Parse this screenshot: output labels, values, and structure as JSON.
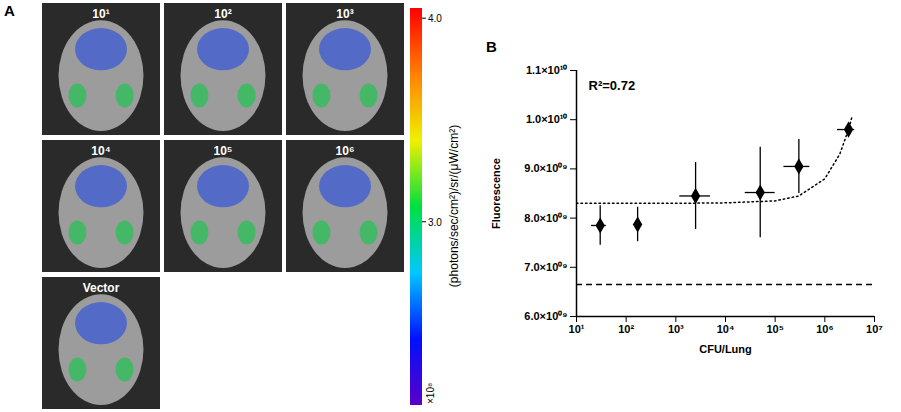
{
  "chart_data": {
    "type": "scatter",
    "panel": "B",
    "xlabel": "CFU/Lung",
    "ylabel": "Fluorescence",
    "log": "x",
    "x": [
      30,
      170,
      2500,
      50000,
      300000,
      3000000
    ],
    "x_lower": [
      20,
      140,
      1200,
      25000,
      150000,
      1800000
    ],
    "x_upper": [
      40,
      200,
      5000,
      100000,
      500000,
      4000000
    ],
    "values": [
      7850000000,
      7870000000,
      8450000000,
      8520000000,
      9050000000,
      9800000000
    ],
    "y_errors": [
      400000000,
      350000000,
      680000000,
      920000000,
      550000000,
      120000000
    ],
    "color": "#000000",
    "marker": "diamond",
    "fit": {
      "x": [
        10,
        100,
        1000,
        10000,
        100000,
        300000,
        1000000,
        2000000,
        3000000,
        3500000
      ],
      "values": [
        8300000000,
        8300000000,
        8300000000,
        8310000000,
        8350000000,
        8450000000,
        8800000000,
        9300000000,
        9800000000,
        10050000000
      ],
      "line_style": "dotted"
    },
    "reference_line": {
      "value": 6650000000,
      "line_style": "dashed"
    },
    "annotations": [
      "R²=0.72"
    ],
    "xlim": [
      10,
      10000000
    ],
    "xticks": [
      {
        "value": 10,
        "label": "10¹"
      },
      {
        "value": 100,
        "label": "10²"
      },
      {
        "value": 1000,
        "label": "10³"
      },
      {
        "value": 10000,
        "label": "10⁴"
      },
      {
        "value": 100000,
        "label": "10⁵"
      },
      {
        "value": 1000000,
        "label": "10⁶"
      },
      {
        "value": 10000000,
        "label": "10⁷"
      }
    ],
    "ylim": [
      6000000000,
      11000000000
    ],
    "yticks": [
      {
        "value": 6000000000,
        "label": "6.0×10⁰⁹"
      },
      {
        "value": 7000000000,
        "label": "7.0×10⁰⁹"
      },
      {
        "value": 8000000000,
        "label": "8.0×10⁰⁹"
      },
      {
        "value": 9000000000,
        "label": "9.0×10⁰⁹"
      },
      {
        "value": 10000000000,
        "label": "1.0×10¹⁰"
      },
      {
        "value": 11000000000,
        "label": "1.1×10¹⁰"
      }
    ]
  },
  "images": {
    "panel": "A",
    "labels": [
      "10¹",
      "10²",
      "10³",
      "10⁴",
      "10⁵",
      "10⁶",
      "Vector"
    ],
    "colorbar": {
      "label": "(photons/sec/cm²)/sr/(μW/cm²)",
      "range": [
        2.1,
        4.05
      ],
      "ticks": [
        {
          "value": 4,
          "label": "4.0"
        },
        {
          "value": 3,
          "label": "3.0"
        }
      ],
      "multiplier": "×10⁸"
    }
  }
}
